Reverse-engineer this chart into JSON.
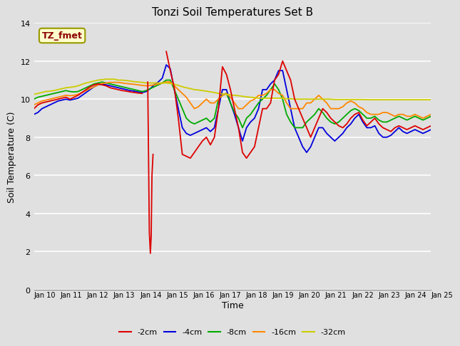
{
  "title": "Tonzi Soil Temperatures Set B",
  "xlabel": "Time",
  "ylabel": "Soil Temperature (C)",
  "ylim": [
    0,
    14
  ],
  "yticks": [
    0,
    2,
    4,
    6,
    8,
    10,
    12,
    14
  ],
  "xtick_labels": [
    "Jan 10",
    "Jan 11",
    "Jan 12",
    "Jan 13",
    "Jan 14",
    "Jan 15",
    "Jan 16",
    "Jan 17",
    "Jan 18",
    "Jan 19",
    "Jan 20",
    "Jan 21",
    "Jan 22",
    "Jan 23",
    "Jan 24",
    "Jan 25"
  ],
  "annotation_text": "TZ_fmet",
  "annotation_color": "#8B0000",
  "annotation_bg": "#FFFFCC",
  "annotation_border": "#999900",
  "bg_color": "#E0E0E0",
  "colors": {
    "-2cm": "#DD0000",
    "-4cm": "#0000DD",
    "-8cm": "#00AA00",
    "-16cm": "#FF8800",
    "-32cm": "#CCCC00"
  },
  "series": {
    "-2cm": [
      9.5,
      9.7,
      9.8,
      9.85,
      9.9,
      9.95,
      10.0,
      10.05,
      10.1,
      10.0,
      10.1,
      10.2,
      10.35,
      10.5,
      10.65,
      10.75,
      10.8,
      10.75,
      10.7,
      10.6,
      10.55,
      10.5,
      10.45,
      10.42,
      10.38,
      10.35,
      10.32,
      10.3,
      10.4,
      10.55,
      10.75,
      10.9,
      11.1,
      12.5,
      11.5,
      10.6,
      9.0,
      7.1,
      7.0,
      6.9,
      7.2,
      7.5,
      7.8,
      8.0,
      7.6,
      8.0,
      9.5,
      11.7,
      11.3,
      10.5,
      9.5,
      8.5,
      7.2,
      6.9,
      7.2,
      7.5,
      8.5,
      9.5,
      9.5,
      9.8,
      11.0,
      11.3,
      12.0,
      11.5,
      11.0,
      10.0,
      9.5,
      9.0,
      8.5,
      8.0,
      8.5,
      9.0,
      9.5,
      9.3,
      9.0,
      8.8,
      8.6,
      8.5,
      8.7,
      9.0,
      9.2,
      9.3,
      8.9,
      8.6,
      8.8,
      9.0,
      8.7,
      8.5,
      8.4,
      8.3,
      8.5,
      8.6,
      8.5,
      8.4,
      8.5,
      8.6,
      8.5,
      8.4,
      8.5,
      8.6
    ],
    "-4cm": [
      9.2,
      9.3,
      9.5,
      9.6,
      9.7,
      9.8,
      9.9,
      9.95,
      10.0,
      9.95,
      10.0,
      10.05,
      10.2,
      10.35,
      10.5,
      10.65,
      10.75,
      10.8,
      10.75,
      10.7,
      10.65,
      10.6,
      10.55,
      10.5,
      10.45,
      10.42,
      10.38,
      10.35,
      10.4,
      10.55,
      10.75,
      10.9,
      11.1,
      11.8,
      11.6,
      10.5,
      9.5,
      8.5,
      8.2,
      8.1,
      8.2,
      8.3,
      8.4,
      8.5,
      8.3,
      8.5,
      9.5,
      10.5,
      10.5,
      9.8,
      9.2,
      8.5,
      7.8,
      8.5,
      8.8,
      9.0,
      9.5,
      10.5,
      10.5,
      10.8,
      11.0,
      11.5,
      11.5,
      10.5,
      9.5,
      8.5,
      8.0,
      7.5,
      7.2,
      7.5,
      8.0,
      8.5,
      8.5,
      8.2,
      8.0,
      7.8,
      8.0,
      8.2,
      8.5,
      8.7,
      9.0,
      9.2,
      8.8,
      8.5,
      8.5,
      8.6,
      8.2,
      8.0,
      8.0,
      8.1,
      8.3,
      8.5,
      8.3,
      8.2,
      8.3,
      8.4,
      8.3,
      8.2,
      8.3,
      8.4
    ],
    "-8cm": [
      10.0,
      10.1,
      10.15,
      10.2,
      10.25,
      10.3,
      10.35,
      10.4,
      10.45,
      10.4,
      10.38,
      10.4,
      10.5,
      10.6,
      10.7,
      10.8,
      10.85,
      10.9,
      10.85,
      10.8,
      10.75,
      10.7,
      10.65,
      10.6,
      10.55,
      10.5,
      10.45,
      10.4,
      10.45,
      10.55,
      10.65,
      10.75,
      10.85,
      11.0,
      11.0,
      10.5,
      10.0,
      9.5,
      9.0,
      8.8,
      8.7,
      8.8,
      8.9,
      9.0,
      8.8,
      9.0,
      10.0,
      10.2,
      10.3,
      9.8,
      9.3,
      9.0,
      8.5,
      9.0,
      9.2,
      9.5,
      9.8,
      10.0,
      10.2,
      10.5,
      10.8,
      10.5,
      10.0,
      9.2,
      8.8,
      8.5,
      8.5,
      8.5,
      8.8,
      9.0,
      9.2,
      9.5,
      9.3,
      9.0,
      8.8,
      8.7,
      8.8,
      9.0,
      9.2,
      9.4,
      9.5,
      9.4,
      9.2,
      9.0,
      9.0,
      9.1,
      8.9,
      8.8,
      8.8,
      8.9,
      9.0,
      9.1,
      9.0,
      8.9,
      9.0,
      9.1,
      9.0,
      8.9,
      9.0,
      9.1
    ],
    "-16cm": [
      9.7,
      9.8,
      9.9,
      9.95,
      10.0,
      10.05,
      10.1,
      10.15,
      10.2,
      10.18,
      10.2,
      10.25,
      10.35,
      10.45,
      10.55,
      10.65,
      10.75,
      10.82,
      10.85,
      10.88,
      10.88,
      10.88,
      10.85,
      10.82,
      10.8,
      10.78,
      10.75,
      10.72,
      10.7,
      10.72,
      10.75,
      10.8,
      10.85,
      10.9,
      10.9,
      10.7,
      10.5,
      10.3,
      10.1,
      9.8,
      9.5,
      9.6,
      9.8,
      10.0,
      9.8,
      9.8,
      10.0,
      10.2,
      10.3,
      10.1,
      9.8,
      9.5,
      9.5,
      9.7,
      9.9,
      10.0,
      10.2,
      10.2,
      10.3,
      10.5,
      10.5,
      10.3,
      10.2,
      9.8,
      9.5,
      9.5,
      9.5,
      9.5,
      9.8,
      9.8,
      10.0,
      10.2,
      10.0,
      9.8,
      9.5,
      9.5,
      9.5,
      9.6,
      9.8,
      9.9,
      9.8,
      9.6,
      9.5,
      9.3,
      9.2,
      9.2,
      9.2,
      9.3,
      9.3,
      9.2,
      9.1,
      9.2,
      9.2,
      9.1,
      9.1,
      9.2,
      9.1,
      9.0,
      9.1,
      9.2
    ],
    "-32cm": [
      10.25,
      10.3,
      10.35,
      10.4,
      10.42,
      10.45,
      10.5,
      10.55,
      10.6,
      10.62,
      10.65,
      10.7,
      10.78,
      10.85,
      10.9,
      10.95,
      11.0,
      11.02,
      11.05,
      11.05,
      11.05,
      11.0,
      11.0,
      10.98,
      10.95,
      10.92,
      10.9,
      10.88,
      10.85,
      10.85,
      10.85,
      10.85,
      10.85,
      10.85,
      10.82,
      10.78,
      10.72,
      10.65,
      10.6,
      10.55,
      10.5,
      10.48,
      10.45,
      10.42,
      10.38,
      10.35,
      10.3,
      10.28,
      10.25,
      10.22,
      10.2,
      10.18,
      10.15,
      10.12,
      10.1,
      10.08,
      10.05,
      10.05,
      10.05,
      10.05,
      10.05,
      10.05,
      10.05,
      10.02,
      10.02,
      10.0,
      10.0,
      10.0,
      10.0,
      10.0,
      10.0,
      10.0,
      10.0,
      10.0,
      10.0,
      9.98,
      9.98,
      9.98,
      9.98,
      9.98,
      9.98,
      9.98,
      9.98,
      9.97,
      9.97,
      9.97,
      9.97,
      9.97,
      9.97,
      9.97,
      9.97,
      9.97,
      9.97,
      9.97,
      9.97,
      9.97,
      9.97,
      9.97,
      9.97,
      9.97
    ]
  },
  "spike_x": [
    4.3,
    4.33,
    4.36,
    4.4,
    4.43,
    4.46,
    4.5
  ],
  "spike_y": [
    10.9,
    7.0,
    3.0,
    1.9,
    2.8,
    6.0,
    7.1
  ]
}
